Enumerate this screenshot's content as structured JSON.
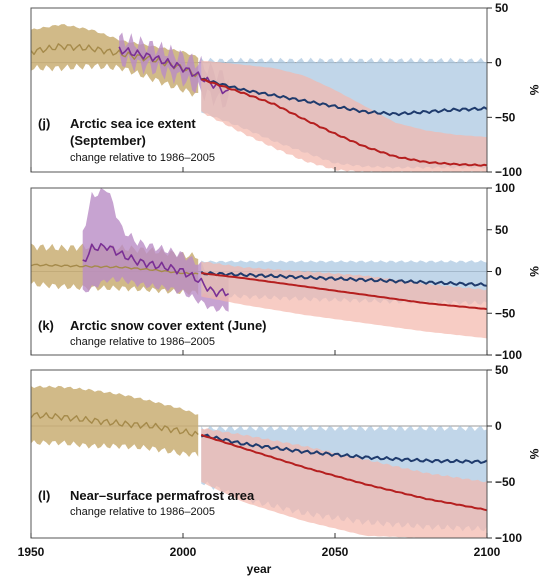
{
  "colors": {
    "observed_band": "#c9ae73",
    "observed_line": "#a58a4a",
    "purple_band": "#b98cc6",
    "purple_line": "#7a2f95",
    "blue_band": "#a6c4e0",
    "blue_line": "#1f3b6d",
    "red_band": "#f4b6ab",
    "red_line": "#b51f1f",
    "zero_line": "#999999"
  },
  "xaxis": {
    "label": "year",
    "ticks": [
      "1950",
      "2000",
      "2050",
      "2100"
    ],
    "range": [
      1950,
      2100
    ]
  },
  "yunit": "%",
  "chart_data": [
    {
      "type": "line",
      "panel_letter": "(j)",
      "title_line1": "Arctic sea ice extent",
      "title_line2": "(September)",
      "subtitle": "change relative to 1986–2005",
      "ylim": [
        -100,
        50
      ],
      "yticks": [
        "50",
        "0",
        "−50",
        "−100"
      ],
      "series": [
        {
          "x": [
            1950,
            1960,
            1970,
            1980,
            1990,
            2000,
            2005
          ],
          "values": [
            10,
            15,
            13,
            8,
            3,
            -5,
            -12
          ],
          "band": [
            [
              -5,
              30
            ],
            [
              -5,
              35
            ],
            [
              -3,
              30
            ],
            [
              -5,
              20
            ],
            [
              -15,
              15
            ],
            [
              -25,
              10
            ],
            [
              -30,
              5
            ]
          ],
          "style": "observed"
        },
        {
          "x": [
            1979,
            1985,
            1990,
            1995,
            2000,
            2005,
            2010,
            2015
          ],
          "values": [
            12,
            8,
            5,
            0,
            -5,
            -12,
            -20,
            -28
          ],
          "band": [
            [
              2,
              22
            ],
            [
              -2,
              18
            ],
            [
              -5,
              15
            ],
            [
              -10,
              10
            ],
            [
              -15,
              5
            ],
            [
              -25,
              0
            ],
            [
              -32,
              -8
            ],
            [
              -38,
              -15
            ]
          ],
          "style": "purple"
        },
        {
          "x": [
            2006,
            2020,
            2030,
            2040,
            2050,
            2060,
            2070,
            2080,
            2090,
            2100
          ],
          "values": [
            -15,
            -25,
            -30,
            -35,
            -40,
            -45,
            -47,
            -45,
            -43,
            -42
          ],
          "band": [
            [
              -45,
              2
            ],
            [
              -60,
              2
            ],
            [
              -72,
              2
            ],
            [
              -82,
              2
            ],
            [
              -92,
              2
            ],
            [
              -95,
              2
            ],
            [
              -96,
              2
            ],
            [
              -96,
              2
            ],
            [
              -96,
              2
            ],
            [
              -96,
              2
            ]
          ],
          "style": "blue"
        },
        {
          "x": [
            2006,
            2020,
            2030,
            2040,
            2050,
            2060,
            2070,
            2080,
            2090,
            2100
          ],
          "values": [
            -15,
            -28,
            -38,
            -52,
            -65,
            -77,
            -86,
            -91,
            -93,
            -94
          ],
          "band": [
            [
              -45,
              2
            ],
            [
              -65,
              -2
            ],
            [
              -78,
              -5
            ],
            [
              -90,
              -12
            ],
            [
              -98,
              -25
            ],
            [
              -100,
              -40
            ],
            [
              -100,
              -55
            ],
            [
              -100,
              -62
            ],
            [
              -100,
              -66
            ],
            [
              -100,
              -68
            ]
          ],
          "style": "red"
        }
      ]
    },
    {
      "type": "line",
      "panel_letter": "(k)",
      "title_line1": "Arctic snow cover extent (June)",
      "title_line2": "",
      "subtitle": "change relative to 1986–2005",
      "ylim": [
        -100,
        100
      ],
      "yticks": [
        "100",
        "50",
        "0",
        "−50",
        "−100"
      ],
      "series": [
        {
          "x": [
            1950,
            1960,
            1970,
            1980,
            1990,
            2000,
            2005
          ],
          "values": [
            8,
            7,
            6,
            5,
            2,
            -2,
            -3
          ],
          "band": [
            [
              -15,
              30
            ],
            [
              -18,
              28
            ],
            [
              -20,
              30
            ],
            [
              -20,
              28
            ],
            [
              -22,
              25
            ],
            [
              -25,
              20
            ],
            [
              -25,
              18
            ]
          ],
          "style": "observed"
        },
        {
          "x": [
            1967,
            1970,
            1975,
            1980,
            1985,
            1990,
            1995,
            2000,
            2005,
            2010,
            2015
          ],
          "values": [
            10,
            28,
            30,
            20,
            12,
            8,
            5,
            0,
            -10,
            -25,
            -25
          ],
          "band": [
            [
              -25,
              45
            ],
            [
              -20,
              90
            ],
            [
              -10,
              100
            ],
            [
              -10,
              50
            ],
            [
              -15,
              35
            ],
            [
              -18,
              30
            ],
            [
              -20,
              25
            ],
            [
              -25,
              20
            ],
            [
              -35,
              10
            ],
            [
              -45,
              -5
            ],
            [
              -45,
              -5
            ]
          ],
          "style": "purple"
        },
        {
          "x": [
            2006,
            2020,
            2040,
            2060,
            2080,
            2100
          ],
          "values": [
            -2,
            -4,
            -7,
            -10,
            -13,
            -16
          ],
          "band": [
            [
              -28,
              12
            ],
            [
              -30,
              12
            ],
            [
              -33,
              12
            ],
            [
              -35,
              12
            ],
            [
              -37,
              12
            ],
            [
              -38,
              12
            ]
          ],
          "style": "blue"
        },
        {
          "x": [
            2006,
            2020,
            2040,
            2060,
            2080,
            2100
          ],
          "values": [
            -2,
            -8,
            -18,
            -28,
            -38,
            -45
          ],
          "band": [
            [
              -30,
              12
            ],
            [
              -40,
              5
            ],
            [
              -52,
              0
            ],
            [
              -62,
              -5
            ],
            [
              -72,
              -15
            ],
            [
              -80,
              -22
            ]
          ],
          "style": "red"
        }
      ]
    },
    {
      "type": "line",
      "panel_letter": "(l)",
      "title_line1": "Near–surface permafrost area",
      "title_line2": "",
      "subtitle": "change relative to 1986–2005",
      "ylim": [
        -100,
        50
      ],
      "yticks": [
        "50",
        "0",
        "−50",
        "−100"
      ],
      "series": [
        {
          "x": [
            1950,
            1960,
            1970,
            1980,
            1990,
            2000,
            2005
          ],
          "values": [
            10,
            8,
            5,
            2,
            0,
            -5,
            -8
          ],
          "band": [
            [
              -15,
              35
            ],
            [
              -15,
              35
            ],
            [
              -18,
              32
            ],
            [
              -18,
              28
            ],
            [
              -20,
              22
            ],
            [
              -25,
              15
            ],
            [
              -25,
              10
            ]
          ],
          "style": "observed"
        },
        {
          "x": [
            2006,
            2020,
            2040,
            2060,
            2080,
            2100
          ],
          "values": [
            -8,
            -16,
            -23,
            -28,
            -31,
            -32
          ],
          "band": [
            [
              -50,
              -2
            ],
            [
              -65,
              -2
            ],
            [
              -78,
              -2
            ],
            [
              -86,
              -2
            ],
            [
              -90,
              -2
            ],
            [
              -92,
              -2
            ]
          ],
          "style": "blue"
        },
        {
          "x": [
            2006,
            2020,
            2040,
            2060,
            2080,
            2100
          ],
          "values": [
            -8,
            -20,
            -37,
            -52,
            -65,
            -75
          ],
          "band": [
            [
              -50,
              -2
            ],
            [
              -68,
              -8
            ],
            [
              -85,
              -18
            ],
            [
              -98,
              -30
            ],
            [
              -100,
              -42
            ],
            [
              -100,
              -50
            ]
          ],
          "style": "red"
        }
      ]
    }
  ]
}
